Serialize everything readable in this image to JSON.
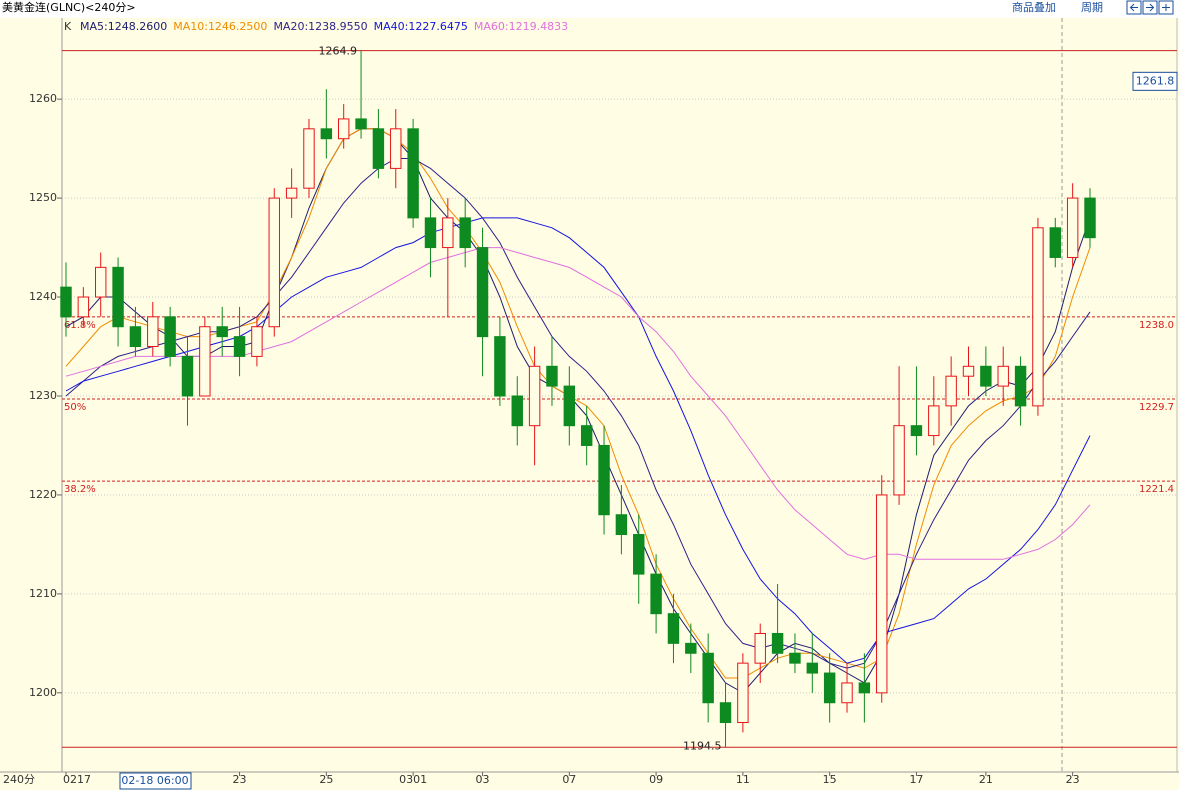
{
  "chart_data": {
    "type": "candlestick",
    "title": "美黄金连(GLNC)<240分>",
    "symbol_label": "K",
    "period_label": "240分",
    "cursor_time": "02-18 06:00",
    "cursor_price": 1261.8,
    "toolbar": [
      "商品叠加",
      "周期"
    ],
    "categories": [
      "0217",
      null,
      null,
      null,
      null,
      null,
      null,
      null,
      null,
      null,
      "23",
      null,
      null,
      null,
      null,
      "25",
      null,
      null,
      null,
      null,
      "0301",
      null,
      null,
      null,
      "03",
      null,
      null,
      null,
      null,
      "07",
      null,
      null,
      null,
      null,
      "09",
      null,
      null,
      null,
      null,
      "11",
      null,
      null,
      null,
      null,
      "15",
      null,
      null,
      null,
      null,
      "17",
      null,
      null,
      null,
      "21",
      null,
      null,
      null,
      null,
      "23",
      null
    ],
    "ohlc": {
      "up_color": "#e8141a",
      "down_color": "#0d8a20",
      "open": [
        1241,
        1238,
        1240,
        1243,
        1237,
        1235,
        1238,
        1234,
        1230,
        1237,
        1236,
        1234,
        1237,
        1250,
        1251,
        1257,
        1256,
        1258,
        1257,
        1253,
        1257,
        1248,
        1245,
        1248,
        1245,
        1236,
        1230,
        1227,
        1233,
        1231,
        1227,
        1225,
        1218,
        1216,
        1212,
        1208,
        1205,
        1204,
        1199,
        1197,
        1203,
        1206,
        1204,
        1203,
        1202,
        1199,
        1201,
        1200,
        1220,
        1227,
        1226,
        1229,
        1232,
        1233,
        1231,
        1233,
        1229,
        1247,
        1244,
        1250
      ],
      "high": [
        1243.5,
        1241,
        1244.5,
        1244,
        1239,
        1239.5,
        1239,
        1236,
        1238,
        1239,
        1239,
        1238,
        1251,
        1253,
        1258,
        1261,
        1259.5,
        1264.9,
        1259,
        1259,
        1258,
        1250,
        1250,
        1250,
        1247,
        1238,
        1232,
        1235,
        1236,
        1233,
        1229,
        1227,
        1221,
        1218,
        1214,
        1210,
        1207,
        1206,
        1201,
        1204,
        1207,
        1211,
        1206,
        1206,
        1204,
        1203,
        1204,
        1222,
        1233,
        1233,
        1232,
        1234,
        1235,
        1235,
        1235,
        1234,
        1248,
        1248,
        1251.5,
        1251
      ],
      "low": [
        1236,
        1237,
        1238,
        1235,
        1234,
        1234,
        1233,
        1227,
        1230,
        1234,
        1232,
        1233,
        1236,
        1248,
        1250,
        1254,
        1255,
        1256,
        1252,
        1251,
        1247,
        1242,
        1238,
        1243,
        1232,
        1229,
        1225,
        1223,
        1229,
        1225,
        1223,
        1216,
        1214,
        1209,
        1206,
        1203,
        1202,
        1197,
        1194.5,
        1196,
        1201,
        1203,
        1202,
        1200,
        1197,
        1198,
        1197,
        1199,
        1219,
        1224,
        1225,
        1227,
        1230,
        1230,
        1229,
        1227,
        1228,
        1243,
        1243,
        1245
      ],
      "close": [
        1238,
        1240,
        1243,
        1237,
        1235,
        1238,
        1234,
        1230,
        1237,
        1236,
        1234,
        1237,
        1250,
        1251,
        1257,
        1256,
        1258,
        1257,
        1253,
        1257,
        1248,
        1245,
        1248,
        1245,
        1236,
        1230,
        1227,
        1233,
        1231,
        1227,
        1225,
        1218,
        1216,
        1212,
        1208,
        1205,
        1204,
        1199,
        1197,
        1203,
        1206,
        1204,
        1203,
        1202,
        1199,
        1201,
        1200,
        1220,
        1227,
        1226,
        1229,
        1232,
        1233,
        1231,
        1233,
        1229,
        1247,
        1244,
        1250,
        1246
      ]
    },
    "series": [
      {
        "name": "MA5:1248.2600",
        "color": "#1c1c6e",
        "values": [
          1237,
          1238,
          1240,
          1240,
          1238.5,
          1237,
          1236,
          1234,
          1234,
          1235,
          1235,
          1235.5,
          1240,
          1244,
          1249,
          1253,
          1256,
          1257,
          1257,
          1256,
          1254,
          1250,
          1248,
          1246.5,
          1244,
          1240,
          1235,
          1232,
          1231,
          1230,
          1228,
          1224,
          1220,
          1216,
          1212,
          1208.5,
          1206,
          1203.5,
          1201,
          1200,
          1202,
          1204,
          1205,
          1204.5,
          1203,
          1202,
          1201,
          1204,
          1210,
          1218,
          1224,
          1226.5,
          1229,
          1230.5,
          1231.5,
          1231,
          1233,
          1236.5,
          1243,
          1248
        ]
      },
      {
        "name": "MA10:1246.2500",
        "color": "#f08c00",
        "values": [
          1233,
          1235,
          1237,
          1238,
          1237.5,
          1237,
          1236.5,
          1236,
          1236,
          1236.5,
          1237,
          1237.5,
          1240.5,
          1244,
          1248,
          1253,
          1256,
          1257,
          1257,
          1256,
          1254.5,
          1252,
          1249,
          1247,
          1244.5,
          1241.5,
          1237,
          1233,
          1231,
          1230,
          1229,
          1227,
          1222,
          1218,
          1213,
          1209.5,
          1206.5,
          1204,
          1201.5,
          1201.5,
          1202.5,
          1203.5,
          1204,
          1204,
          1203.5,
          1203,
          1202.5,
          1203.5,
          1208,
          1215,
          1221,
          1225,
          1227,
          1228.5,
          1229.5,
          1230,
          1231,
          1234,
          1240,
          1245
        ]
      },
      {
        "name": "MA20:1238.9550",
        "color": "#2c1f8a",
        "values": [
          1230,
          1231.5,
          1233,
          1234,
          1234.5,
          1235,
          1235.5,
          1236,
          1236.5,
          1236.5,
          1237,
          1238,
          1240,
          1242,
          1244.5,
          1247,
          1249.5,
          1251.5,
          1253,
          1254,
          1254,
          1253,
          1251.5,
          1250,
          1248,
          1245.5,
          1242,
          1239,
          1236,
          1234,
          1232.5,
          1230.5,
          1228,
          1225,
          1220.5,
          1217,
          1213,
          1210,
          1207,
          1205,
          1204.5,
          1205,
          1204.5,
          1204,
          1203,
          1202.5,
          1203,
          1206,
          1210,
          1214,
          1217.5,
          1220.5,
          1223.5,
          1225.5,
          1227,
          1229,
          1231.5,
          1233.5,
          1236,
          1238.5
        ]
      },
      {
        "name": "MA40:1227.6475",
        "color": "#1414e0",
        "values": [
          1230.5,
          1231.5,
          1232,
          1232.5,
          1233,
          1233.5,
          1234,
          1234.5,
          1235,
          1235.5,
          1236,
          1237,
          1238.5,
          1240,
          1241,
          1242,
          1242.5,
          1243,
          1244,
          1245,
          1245.5,
          1246.5,
          1247,
          1247.5,
          1248,
          1248,
          1248,
          1247.5,
          1247,
          1246,
          1244.5,
          1243,
          1240.5,
          1238,
          1234,
          1230.5,
          1226.5,
          1222,
          1218,
          1214.5,
          1211.5,
          1209.5,
          1208,
          1206,
          1204.5,
          1203,
          1203.5,
          1206,
          1206.5,
          1207,
          1207.5,
          1209,
          1210.5,
          1211.5,
          1213,
          1214.5,
          1216.5,
          1219,
          1222.5,
          1226
        ]
      },
      {
        "name": "MA60:1219.4833",
        "color": "#e070e0",
        "values": [
          1232,
          1232.5,
          1233,
          1233.5,
          1234,
          1234,
          1234,
          1234,
          1234,
          1234,
          1234,
          1234.5,
          1235,
          1235.5,
          1236.5,
          1237.5,
          1238.5,
          1239.5,
          1240.5,
          1241.5,
          1242.5,
          1243.5,
          1244,
          1244.5,
          1245,
          1245,
          1244.5,
          1244,
          1243.5,
          1243,
          1242,
          1241,
          1240,
          1238,
          1236.5,
          1234.5,
          1232,
          1230,
          1228,
          1225.5,
          1223,
          1220.5,
          1218.5,
          1217,
          1215.5,
          1214,
          1213.5,
          1214,
          1214,
          1213.5,
          1213.5,
          1213.5,
          1213.5,
          1213.5,
          1213.5,
          1214,
          1214.5,
          1215.5,
          1217,
          1219
        ]
      }
    ],
    "ylim": [
      1192,
      1268.2
    ],
    "yticks": [
      1200,
      1210,
      1220,
      1230,
      1240,
      1250,
      1260
    ],
    "grid": true,
    "fib_levels": [
      {
        "value": 1238.0,
        "label": "61.8%",
        "value_label": "1238.0"
      },
      {
        "value": 1229.7,
        "label": "50%",
        "value_label": "1229.7"
      },
      {
        "value": 1221.4,
        "label": "38.2%",
        "value_label": "1221.4"
      }
    ],
    "extremes": {
      "high": 1264.9,
      "low": 1194.5
    }
  }
}
